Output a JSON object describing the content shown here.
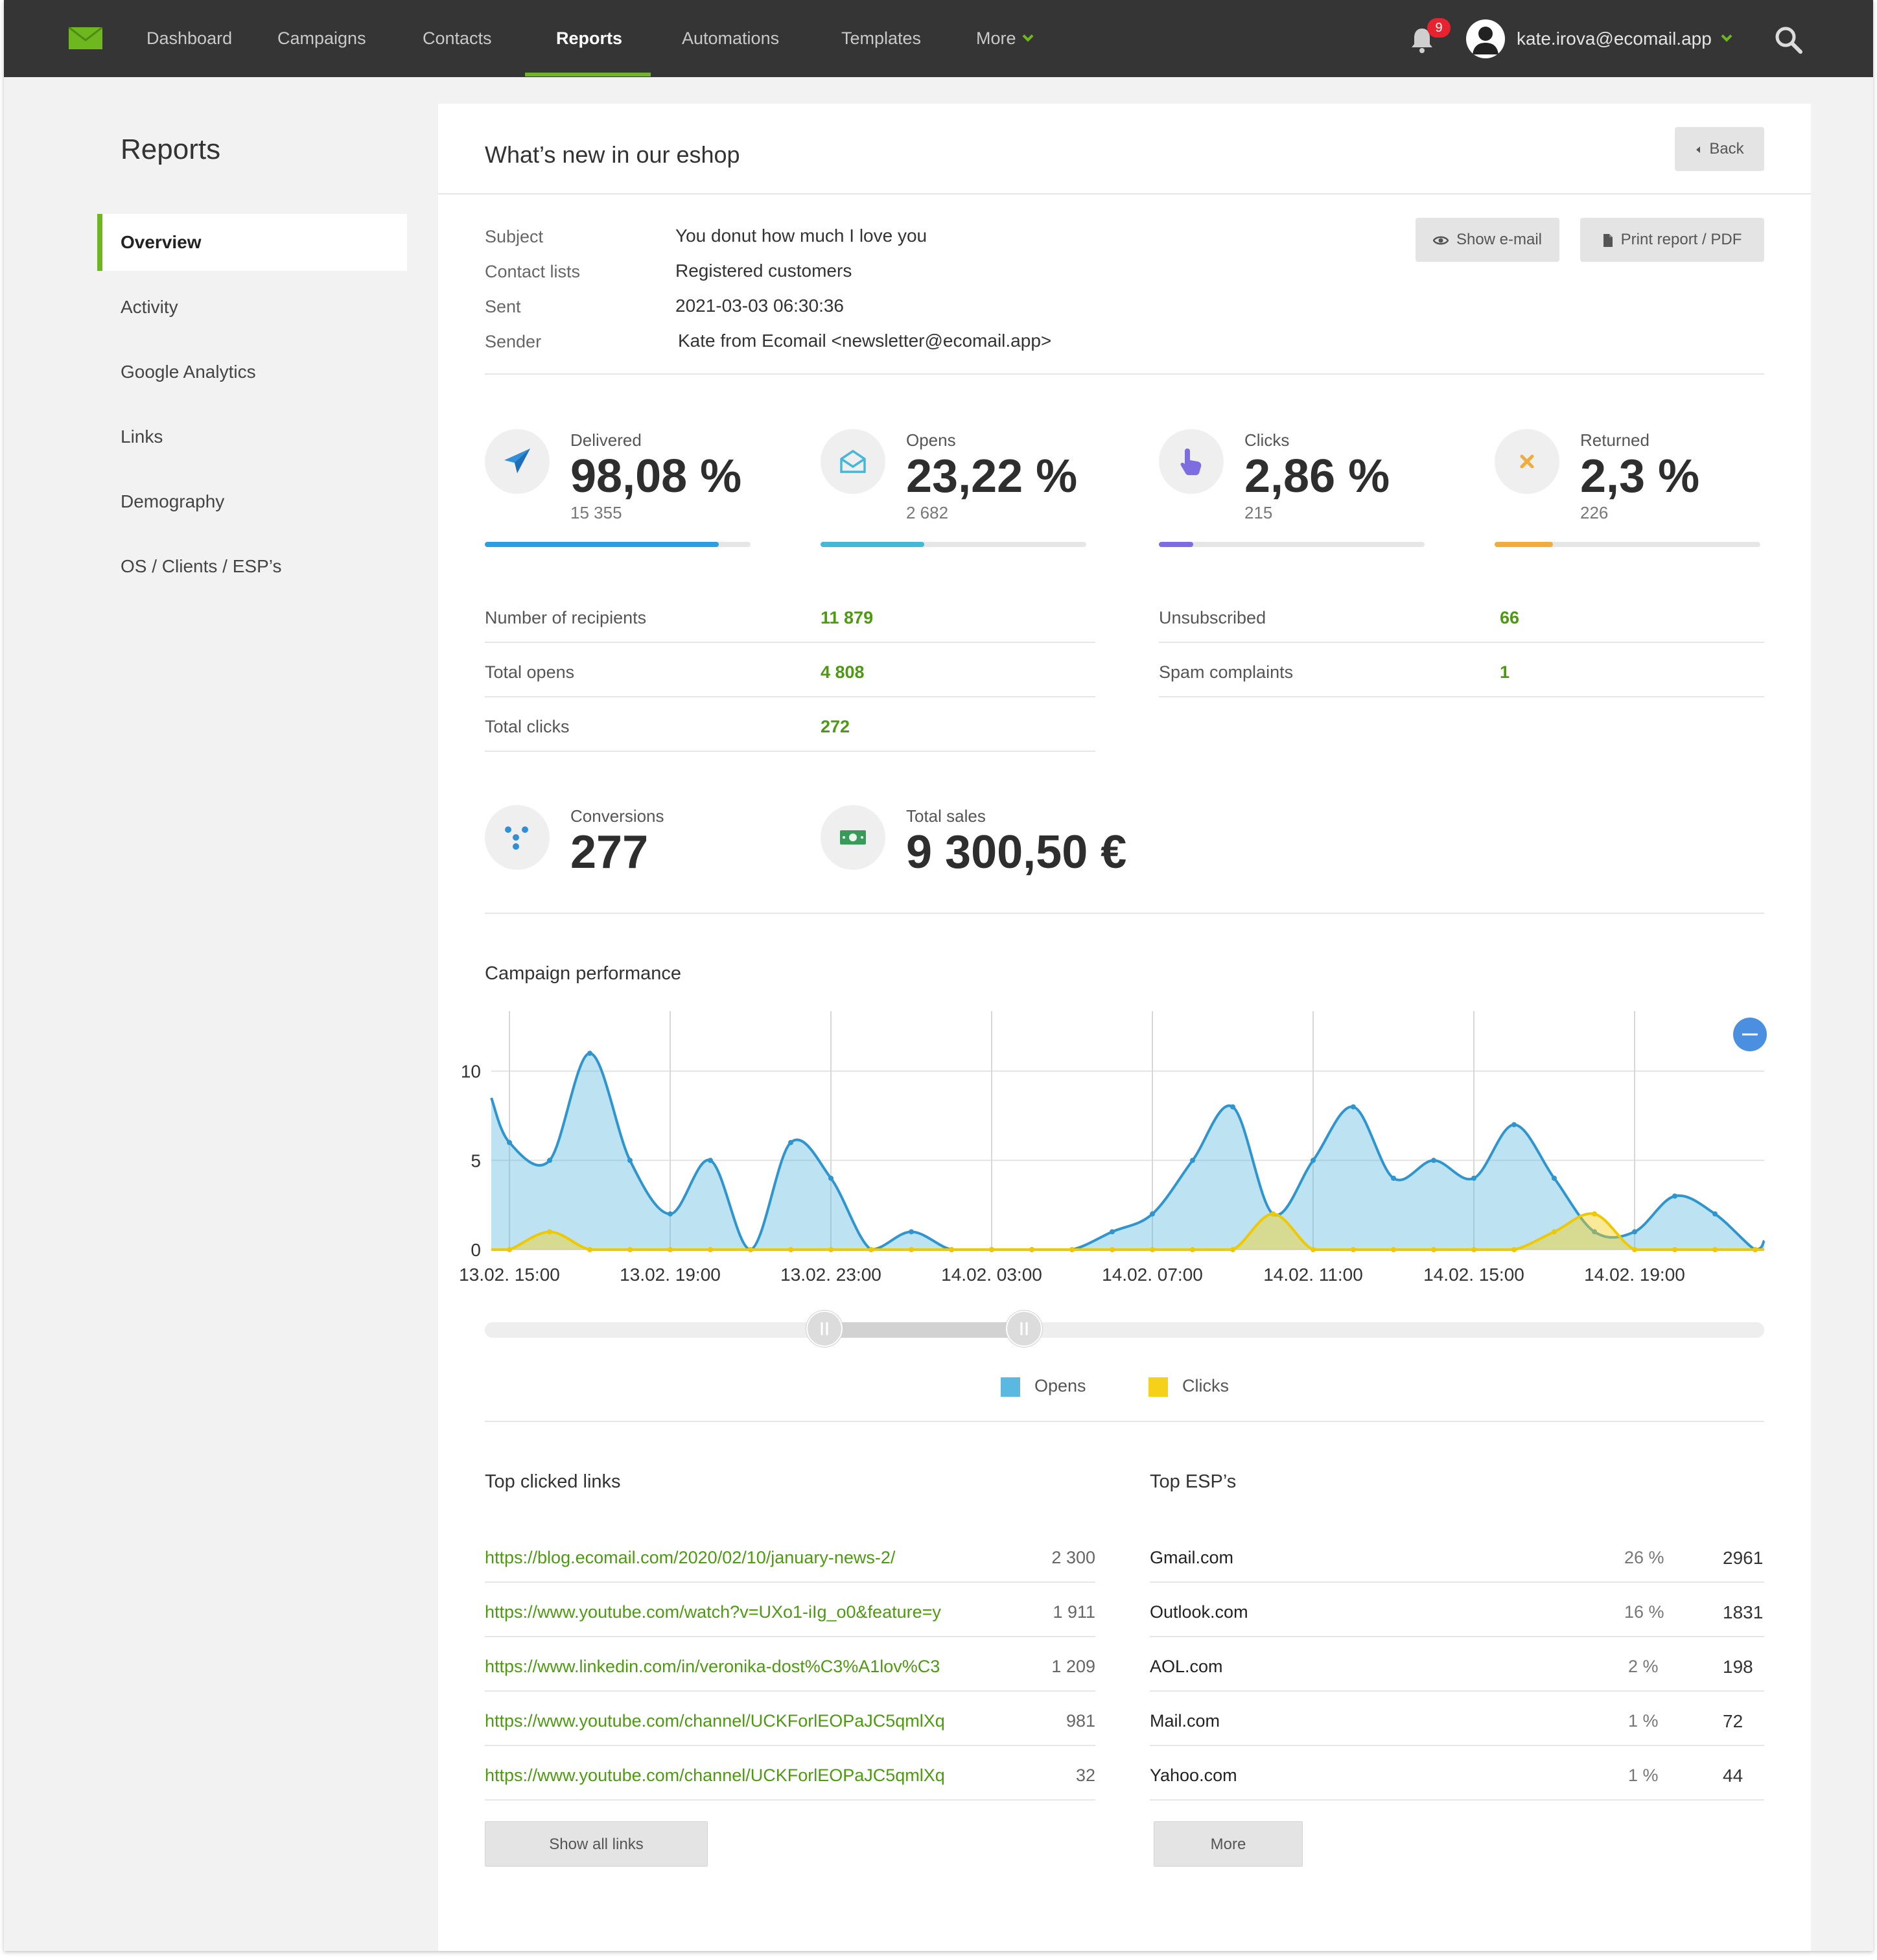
{
  "nav": {
    "items": [
      {
        "label": "Dashboard"
      },
      {
        "label": "Campaigns"
      },
      {
        "label": "Contacts"
      },
      {
        "label": "Reports"
      },
      {
        "label": "Automations"
      },
      {
        "label": "Templates"
      },
      {
        "label": "More"
      }
    ],
    "active": "Reports",
    "notification_count": "9",
    "user_email": "kate.irova@ecomail.app",
    "accent": "#6fb71e"
  },
  "sidebar": {
    "title": "Reports",
    "items": [
      {
        "label": "Overview"
      },
      {
        "label": "Activity"
      },
      {
        "label": "Google Analytics"
      },
      {
        "label": "Links"
      },
      {
        "label": "Demography"
      },
      {
        "label": "OS / Clients / ESP’s"
      }
    ]
  },
  "report": {
    "title": "What’s new in our eshop",
    "back_label": "Back",
    "show_email_label": "Show e-mail",
    "print_label": "Print report / PDF",
    "meta": [
      {
        "label": "Subject",
        "value": "You donut how much I love you"
      },
      {
        "label": "Contact lists",
        "value": "Registered customers"
      },
      {
        "label": "Sent",
        "value": "2021-03-03 06:30:36"
      },
      {
        "label": "Sender",
        "value": "Kate from Ecomail <newsletter@ecomail.app>"
      }
    ]
  },
  "stats": [
    {
      "label": "Delivered",
      "value": "98,08 %",
      "sub": "15 355",
      "fraction": 0.88,
      "color": "#2f9ee0",
      "icon": "paper-plane-icon"
    },
    {
      "label": "Opens",
      "value": "23,22 %",
      "sub": "2 682",
      "fraction": 0.39,
      "color": "#45b7d8",
      "icon": "open-envelope-icon"
    },
    {
      "label": "Clicks",
      "value": "2,86 %",
      "sub": "215",
      "fraction": 0.13,
      "color": "#7c6ee0",
      "icon": "pointer-hand-icon"
    },
    {
      "label": "Returned",
      "value": "2,3 %",
      "sub": "226",
      "fraction": 0.22,
      "color": "#f0ac3c",
      "icon": "cross-icon"
    }
  ],
  "details_left": [
    {
      "label": "Number of recipients",
      "value": "11 879"
    },
    {
      "label": "Total opens",
      "value": "4 808"
    },
    {
      "label": "Total clicks",
      "value": "272"
    }
  ],
  "details_right": [
    {
      "label": "Unsubscribed",
      "value": "66"
    },
    {
      "label": "Spam complaints",
      "value": "1"
    }
  ],
  "conversions": {
    "label": "Conversions",
    "value": "277"
  },
  "sales": {
    "label": "Total sales",
    "value": "9 300,50 €"
  },
  "performance": {
    "title": "Campaign performance"
  },
  "chart_data": {
    "type": "area",
    "title": "Campaign performance",
    "x_ticks": [
      "13.02. 15:00",
      "13.02. 19:00",
      "13.02. 23:00",
      "14.02. 03:00",
      "14.02. 07:00",
      "14.02. 11:00",
      "14.02. 15:00",
      "14.02. 19:00"
    ],
    "x_start_hours_before_first_tick": 0.5,
    "x": [
      -0.5,
      0,
      1,
      2,
      3,
      4,
      5,
      6,
      7,
      8,
      9,
      10,
      11,
      12,
      13,
      14,
      15,
      16,
      17,
      18,
      19,
      20,
      21,
      22,
      23,
      24,
      25,
      26,
      27,
      28,
      29,
      30,
      31
    ],
    "y_ticks": [
      0,
      5,
      10
    ],
    "ylim": [
      0,
      13
    ],
    "series": [
      {
        "name": "Opens",
        "color": "#5bb8e0",
        "values": [
          8.5,
          6,
          5,
          11,
          5,
          2,
          5,
          0,
          6,
          4,
          0,
          1,
          0,
          0,
          0,
          0,
          1,
          2,
          5,
          8,
          2,
          5,
          8,
          4,
          5,
          4,
          7,
          4,
          1,
          1,
          3,
          2,
          0
        ]
      },
      {
        "name": "Clicks",
        "color": "#f5d11a",
        "values": [
          0,
          0,
          1,
          0,
          0,
          0,
          0,
          0,
          0,
          0,
          0,
          0,
          0,
          0,
          0,
          0,
          0,
          0,
          0,
          0,
          2,
          0,
          0,
          0,
          0,
          0,
          0,
          1,
          2,
          0,
          0,
          0,
          0
        ]
      }
    ],
    "legend": "bottom",
    "grid": true
  },
  "legend": {
    "opens": "Opens",
    "clicks": "Clicks"
  },
  "top_links": {
    "title": "Top clicked links",
    "items": [
      {
        "url": "https://blog.ecomail.com/2020/02/10/january-news-2/",
        "count": "2 300"
      },
      {
        "url": "https://www.youtube.com/watch?v=UXo1-iIg_o0&feature=y",
        "count": "1 911"
      },
      {
        "url": "https://www.linkedin.com/in/veronika-dost%C3%A1lov%C3",
        "count": "1 209"
      },
      {
        "url": "https://www.youtube.com/channel/UCKForlEOPaJC5qmlXq",
        "count": "981"
      },
      {
        "url": "https://www.youtube.com/channel/UCKForlEOPaJC5qmlXq",
        "count": "32"
      }
    ],
    "button": "Show all links"
  },
  "top_esps": {
    "title": "Top ESP’s",
    "items": [
      {
        "name": "Gmail.com",
        "pct": "26 %",
        "count": "2961"
      },
      {
        "name": "Outlook.com",
        "pct": "16 %",
        "count": "1831"
      },
      {
        "name": "AOL.com",
        "pct": "2 %",
        "count": "198"
      },
      {
        "name": "Mail.com",
        "pct": "1 %",
        "count": "72"
      },
      {
        "name": "Yahoo.com",
        "pct": "1 %",
        "count": "44"
      }
    ],
    "button": "More"
  }
}
